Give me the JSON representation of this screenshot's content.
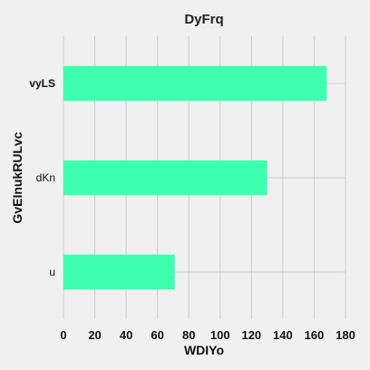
{
  "chart_data": {
    "type": "bar",
    "orientation": "horizontal",
    "title": "DyFrq",
    "xlabel": "WDIYo",
    "ylabel": "GvEInukRULvc",
    "categories": [
      "vyLS",
      "dKn",
      "u"
    ],
    "values": [
      168,
      130,
      71
    ],
    "xlim": [
      0,
      180
    ],
    "xticks": [
      0,
      20,
      40,
      60,
      80,
      100,
      120,
      140,
      160,
      180
    ],
    "grid": true,
    "bar_color": "#3dffaf",
    "background": "#f0f0f0"
  }
}
